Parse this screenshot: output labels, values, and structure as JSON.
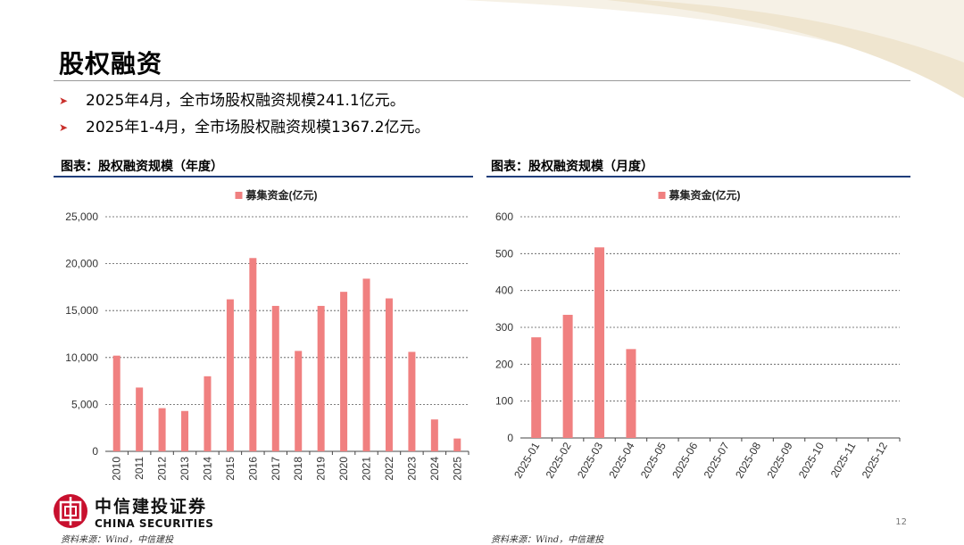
{
  "page": {
    "title": "股权融资",
    "bullets": [
      "2025年4月，全市场股权融资规模241.1亿元。",
      "2025年1-4月，全市场股权融资规模1367.2亿元。"
    ],
    "page_number": "12"
  },
  "logo": {
    "name_cn": "中信建投证券",
    "name_en": "CHINA SECURITIES"
  },
  "colors": {
    "bar": "#f08080",
    "accent_rule": "#1f3d7a",
    "bullet_arrow": "#c9302c"
  },
  "chart_data": [
    {
      "type": "bar",
      "title": "图表：股权融资规模（年度）",
      "legend_position": "top-center",
      "grid": true,
      "categories": [
        "2010",
        "2011",
        "2012",
        "2013",
        "2014",
        "2015",
        "2016",
        "2017",
        "2018",
        "2019",
        "2020",
        "2021",
        "2022",
        "2023",
        "2024",
        "2025"
      ],
      "series": [
        {
          "name": "募集资金(亿元)",
          "values": [
            10200,
            6800,
            4600,
            4300,
            8000,
            16200,
            20600,
            15500,
            10700,
            15500,
            17000,
            18400,
            16300,
            10600,
            3400,
            1367.2
          ]
        }
      ],
      "yticks": [
        "0",
        "5,000",
        "10,000",
        "15,000",
        "20,000",
        "25,000"
      ],
      "ylim": [
        0,
        25000
      ],
      "source": "资料来源：Wind，中信建投"
    },
    {
      "type": "bar",
      "title": "图表：股权融资规模（月度）",
      "legend_position": "top-center",
      "grid": true,
      "categories": [
        "2025-01",
        "2025-02",
        "2025-03",
        "2025-04",
        "2025-05",
        "2025-06",
        "2025-07",
        "2025-08",
        "2025-09",
        "2025-10",
        "2025-11",
        "2025-12"
      ],
      "series": [
        {
          "name": "募集资金(亿元)",
          "values": [
            273,
            334,
            517,
            241.1,
            null,
            null,
            null,
            null,
            null,
            null,
            null,
            null
          ]
        }
      ],
      "yticks": [
        "0",
        "100",
        "200",
        "300",
        "400",
        "500",
        "600"
      ],
      "ylim": [
        0,
        600
      ],
      "source": "资料来源：Wind，中信建投"
    }
  ]
}
